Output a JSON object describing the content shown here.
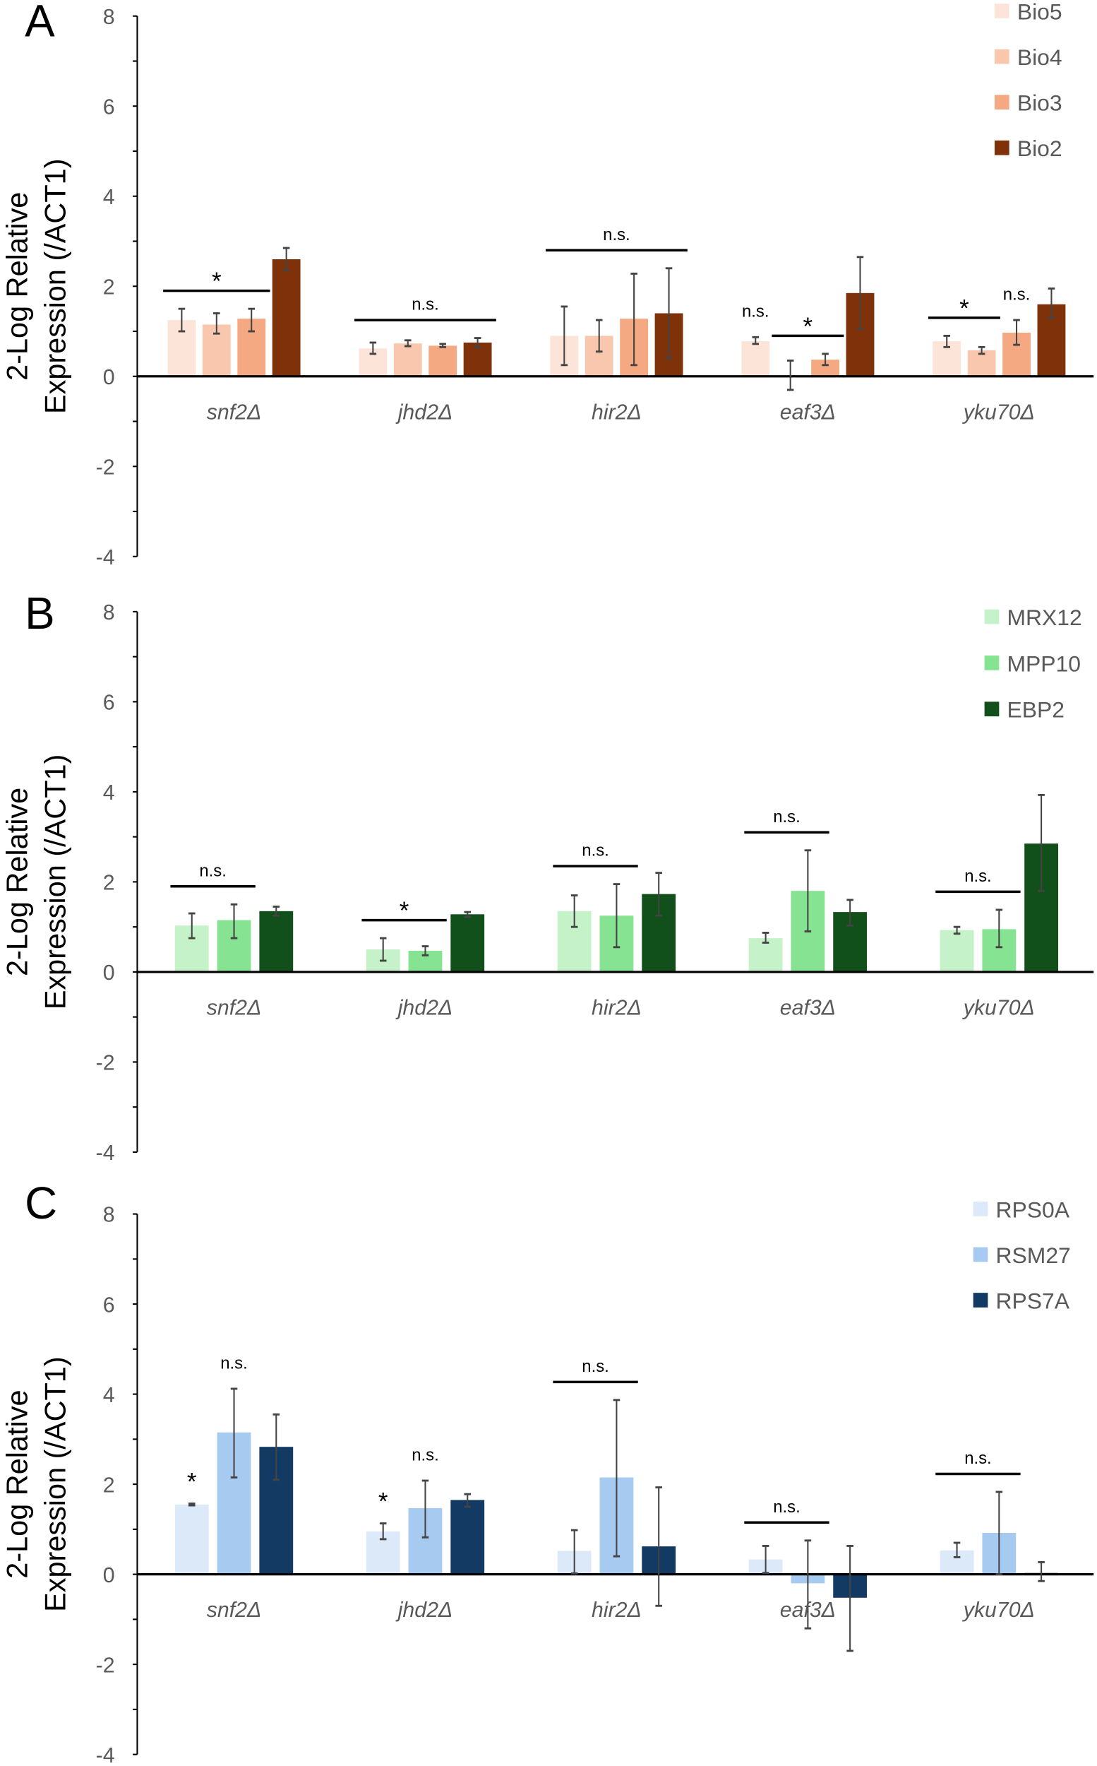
{
  "chart_data": [
    {
      "type": "bar",
      "panel_label": "A",
      "ylabel_line1": "2-Log Relative",
      "ylabel_line2": "Expression (/ACT1)",
      "ylim": [
        -4,
        8
      ],
      "yticks": [
        "8",
        "6",
        "4",
        "2",
        "0",
        "-2",
        "-4"
      ],
      "categories": [
        "snf2Δ",
        "jhd2Δ",
        "hir2Δ",
        "eaf3Δ",
        "yku70Δ"
      ],
      "legend_position": "top-right",
      "series": [
        {
          "name": "Bio5",
          "color": "#fde4d8",
          "values": [
            1.25,
            0.62,
            0.9,
            0.78,
            0.78
          ],
          "err": [
            [
              1.0,
              1.5
            ],
            [
              0.5,
              0.75
            ],
            [
              0.25,
              1.55
            ],
            [
              0.72,
              0.87
            ],
            [
              0.65,
              0.9
            ]
          ]
        },
        {
          "name": "Bio4",
          "color": "#f8c7ad",
          "values": [
            1.15,
            0.73,
            0.9,
            0.0,
            0.58
          ],
          "err": [
            [
              0.95,
              1.4
            ],
            [
              0.67,
              0.8
            ],
            [
              0.55,
              1.25
            ],
            [
              -0.3,
              0.35
            ],
            [
              0.5,
              0.65
            ]
          ]
        },
        {
          "name": "Bio3",
          "color": "#f4a982",
          "values": [
            1.28,
            0.68,
            1.28,
            0.37,
            0.97
          ],
          "err": [
            [
              1.0,
              1.5
            ],
            [
              0.65,
              0.72
            ],
            [
              0.25,
              2.28
            ],
            [
              0.25,
              0.5
            ],
            [
              0.7,
              1.25
            ]
          ]
        },
        {
          "name": "Bio2",
          "color": "#7f3109",
          "values": [
            2.6,
            0.75,
            1.4,
            1.85,
            1.6
          ],
          "err": [
            [
              2.35,
              2.85
            ],
            [
              0.65,
              0.85
            ],
            [
              0.4,
              2.4
            ],
            [
              1.05,
              2.65
            ],
            [
              1.3,
              1.95
            ]
          ]
        }
      ],
      "significance": [
        {
          "category": 0,
          "from": 0,
          "to": 2,
          "line": true,
          "label": "*"
        },
        {
          "category": 1,
          "from": 0,
          "to": 3,
          "line": true,
          "label": "n.s."
        },
        {
          "category": 2,
          "from": 0,
          "to": 3,
          "line": true,
          "label": "n.s."
        },
        {
          "category": 3,
          "from": 0,
          "to": 0,
          "line": false,
          "label": "n.s."
        },
        {
          "category": 3,
          "from": 1,
          "to": 2,
          "line": true,
          "label": "*"
        },
        {
          "category": 4,
          "from": 0,
          "to": 1,
          "line": true,
          "label": "*"
        },
        {
          "category": 4,
          "from": 2,
          "to": 2,
          "line": false,
          "label": "n.s."
        }
      ]
    },
    {
      "type": "bar",
      "panel_label": "B",
      "ylabel_line1": "2-Log Relative",
      "ylabel_line2": "Expression (/ACT1)",
      "ylim": [
        -4,
        8
      ],
      "yticks": [
        "8",
        "6",
        "4",
        "2",
        "0",
        "-2",
        "-4"
      ],
      "categories": [
        "snf2Δ",
        "jhd2Δ",
        "hir2Δ",
        "eaf3Δ",
        "yku70Δ"
      ],
      "legend_position": "top-right",
      "series": [
        {
          "name": "MRX12",
          "color": "#c6f2c9",
          "values": [
            1.03,
            0.5,
            1.35,
            0.75,
            0.93
          ],
          "err": [
            [
              0.75,
              1.3
            ],
            [
              0.25,
              0.75
            ],
            [
              1.0,
              1.7
            ],
            [
              0.65,
              0.87
            ],
            [
              0.85,
              1.0
            ]
          ]
        },
        {
          "name": "MPP10",
          "color": "#86e391",
          "values": [
            1.15,
            0.47,
            1.25,
            1.8,
            0.95
          ],
          "err": [
            [
              0.75,
              1.5
            ],
            [
              0.37,
              0.57
            ],
            [
              0.55,
              1.95
            ],
            [
              0.9,
              2.7
            ],
            [
              0.55,
              1.38
            ]
          ]
        },
        {
          "name": "EBP2",
          "color": "#114f1b",
          "values": [
            1.35,
            1.28,
            1.73,
            1.33,
            2.85
          ],
          "err": [
            [
              1.25,
              1.45
            ],
            [
              1.22,
              1.33
            ],
            [
              1.25,
              2.2
            ],
            [
              1.03,
              1.6
            ],
            [
              1.8,
              3.93
            ]
          ]
        }
      ],
      "significance": [
        {
          "category": 0,
          "from": 0,
          "to": 1,
          "line": true,
          "label": "n.s."
        },
        {
          "category": 1,
          "from": 0,
          "to": 1,
          "line": true,
          "label": "*"
        },
        {
          "category": 2,
          "from": 0,
          "to": 1,
          "line": true,
          "label": "n.s."
        },
        {
          "category": 3,
          "from": 0,
          "to": 1,
          "line": true,
          "label": "n.s."
        },
        {
          "category": 4,
          "from": 0,
          "to": 1,
          "line": true,
          "label": "n.s."
        }
      ]
    },
    {
      "type": "bar",
      "panel_label": "C",
      "ylabel_line1": "2-Log Relative",
      "ylabel_line2": "Expression (/ACT1)",
      "ylim": [
        -4,
        8
      ],
      "yticks": [
        "8",
        "6",
        "4",
        "2",
        "0",
        "-2",
        "-4"
      ],
      "categories": [
        "snf2Δ",
        "jhd2Δ",
        "hir2Δ",
        "eaf3Δ",
        "yku70Δ"
      ],
      "legend_position": "top-right",
      "series": [
        {
          "name": "RPS0A",
          "color": "#dce9f8",
          "values": [
            1.55,
            0.95,
            0.52,
            0.33,
            0.53
          ],
          "err": [
            [
              1.53,
              1.57
            ],
            [
              0.78,
              1.13
            ],
            [
              0.02,
              0.98
            ],
            [
              0.03,
              0.63
            ],
            [
              0.38,
              0.7
            ]
          ]
        },
        {
          "name": "RSM27",
          "color": "#a7cbf0",
          "values": [
            3.15,
            1.47,
            2.15,
            -0.2,
            0.92
          ],
          "err": [
            [
              2.15,
              4.12
            ],
            [
              0.82,
              2.08
            ],
            [
              0.4,
              3.87
            ],
            [
              -1.2,
              0.75
            ],
            [
              0.0,
              1.83
            ]
          ]
        },
        {
          "name": "RPS7A",
          "color": "#123a63",
          "values": [
            2.83,
            1.65,
            0.62,
            -0.52,
            0.03
          ],
          "err": [
            [
              2.1,
              3.55
            ],
            [
              1.5,
              1.78
            ],
            [
              -0.7,
              1.93
            ],
            [
              -1.7,
              0.63
            ],
            [
              -0.15,
              0.27
            ]
          ]
        }
      ],
      "significance": [
        {
          "category": 0,
          "from": 0,
          "to": 0,
          "line": false,
          "label": "*"
        },
        {
          "category": 0,
          "from": 1,
          "to": 1,
          "line": false,
          "label": "n.s."
        },
        {
          "category": 1,
          "from": 0,
          "to": 0,
          "line": false,
          "label": "*"
        },
        {
          "category": 1,
          "from": 1,
          "to": 1,
          "line": false,
          "label": "n.s."
        },
        {
          "category": 2,
          "from": 0,
          "to": 1,
          "line": true,
          "label": "n.s."
        },
        {
          "category": 3,
          "from": 0,
          "to": 1,
          "line": true,
          "label": "n.s."
        },
        {
          "category": 4,
          "from": 0,
          "to": 1,
          "line": true,
          "label": "n.s."
        }
      ]
    }
  ]
}
